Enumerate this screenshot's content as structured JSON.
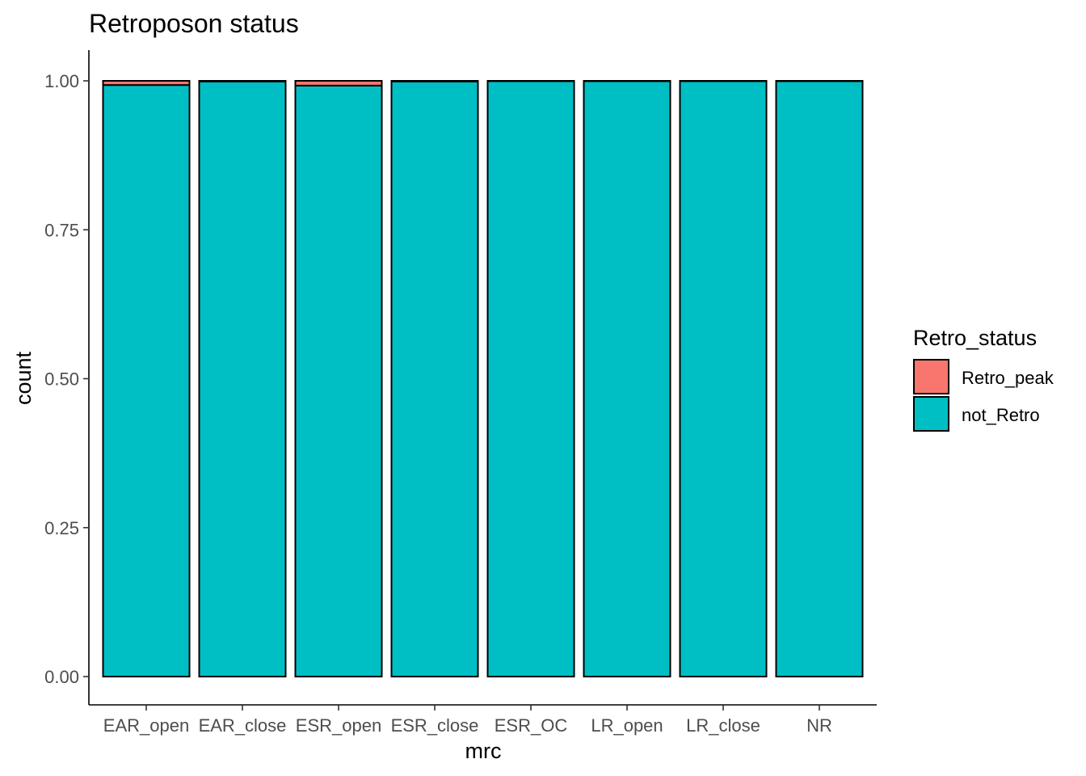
{
  "chart_data": {
    "type": "bar",
    "stacked": true,
    "title": "Retroposon status",
    "xlabel": "mrc",
    "ylabel": "count",
    "ylim": [
      0,
      1
    ],
    "yticks": [
      "0.00",
      "0.25",
      "0.50",
      "0.75",
      "1.00"
    ],
    "categories": [
      "EAR_open",
      "EAR_close",
      "ESR_open",
      "ESR_close",
      "ESR_OC",
      "LR_open",
      "LR_close",
      "NR"
    ],
    "series": [
      {
        "name": "not_Retro",
        "color": "#00BFC4",
        "values": [
          0.993,
          0.999,
          0.992,
          0.999,
          0.9995,
          0.9995,
          0.9995,
          0.9995
        ]
      },
      {
        "name": "Retro_peak",
        "color": "#F8766D",
        "values": [
          0.007,
          0.001,
          0.008,
          0.001,
          0.0005,
          0.0005,
          0.0005,
          0.0005
        ]
      }
    ],
    "legend": {
      "title": "Retro_status",
      "position": "right",
      "entries": [
        {
          "label": "Retro_peak",
          "color": "#F8766D"
        },
        {
          "label": "not_Retro",
          "color": "#00BFC4"
        }
      ]
    },
    "grid": false
  }
}
